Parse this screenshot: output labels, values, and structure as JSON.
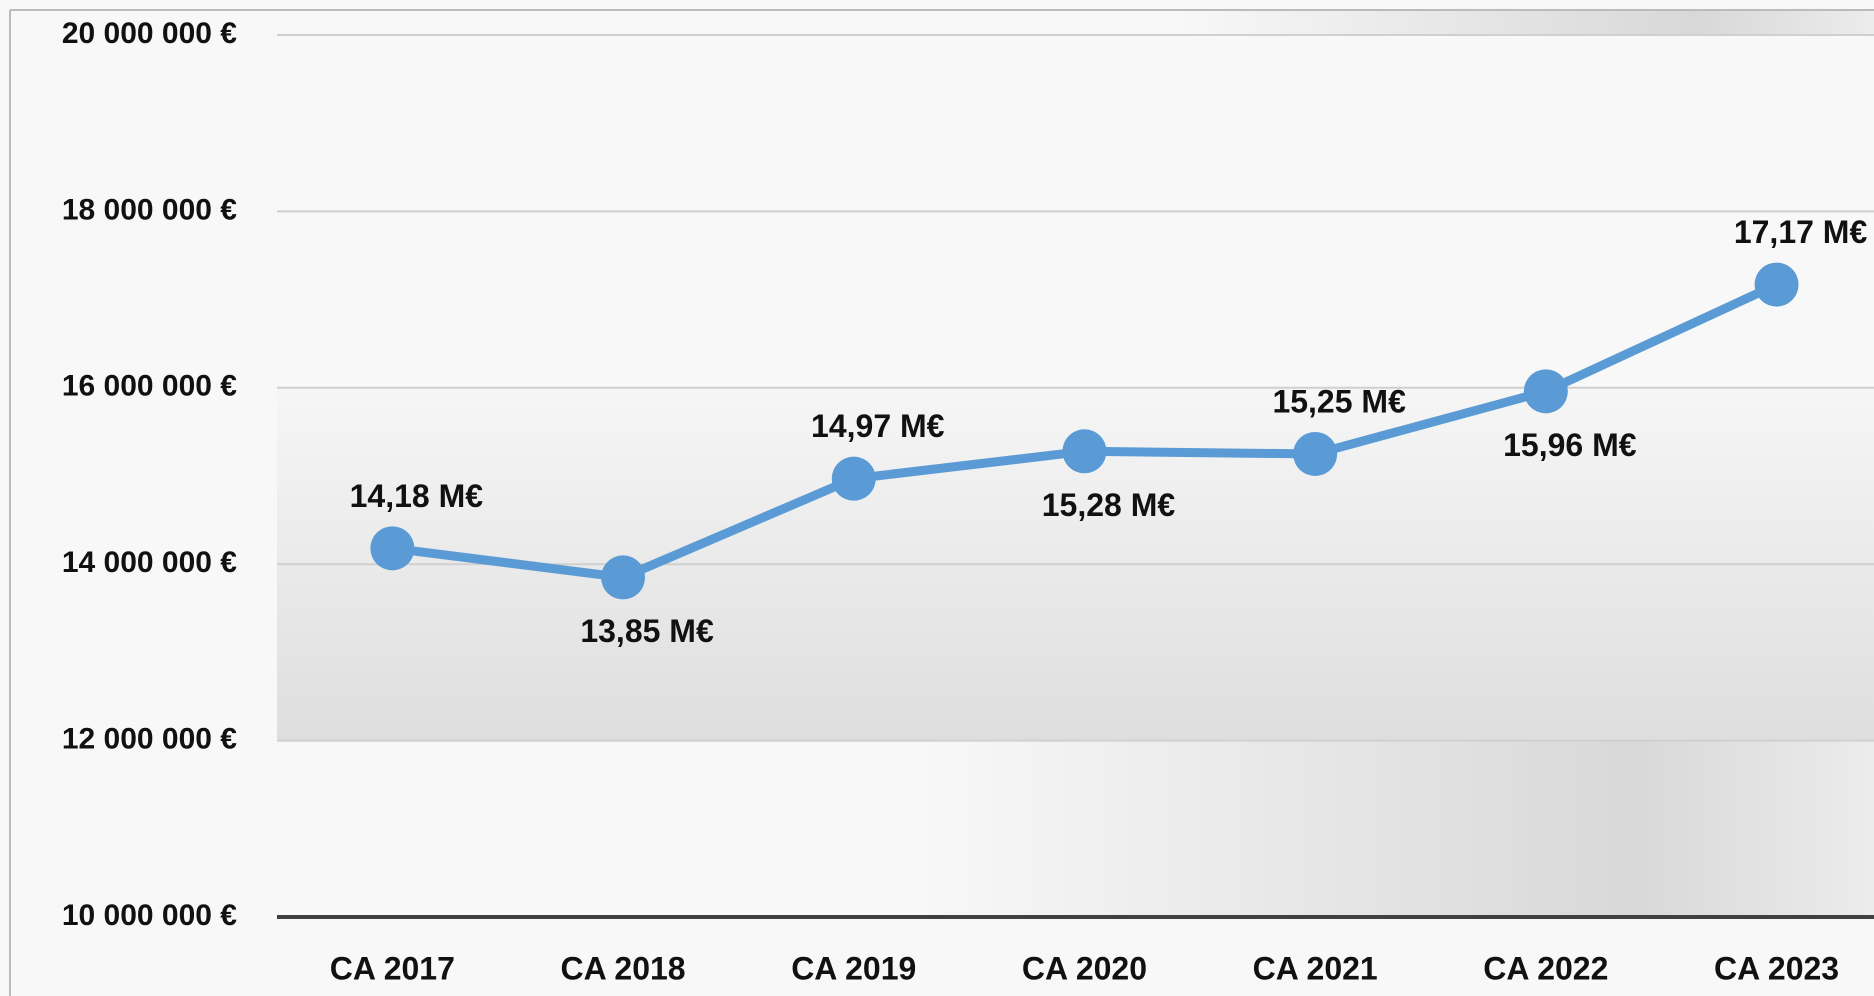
{
  "chart_data": {
    "type": "line",
    "categories": [
      "CA 2017",
      "CA 2018",
      "CA 2019",
      "CA 2020",
      "CA 2021",
      "CA 2022",
      "CA 2023"
    ],
    "series": [
      {
        "color": "#5b9bd5",
        "values": [
          14180000,
          13850000,
          14970000,
          15280000,
          15250000,
          15960000,
          17170000
        ],
        "value_labels": [
          "14,18 M€",
          "13,85 M€",
          "14,97 M€",
          "15,28 M€",
          "15,25 M€",
          "15,96 M€",
          "17,17 M€"
        ]
      }
    ],
    "ylim": [
      10000000,
      20000000
    ],
    "yticks": [
      {
        "value": 10000000,
        "label": "10 000 000 €"
      },
      {
        "value": 12000000,
        "label": "12 000 000 €"
      },
      {
        "value": 14000000,
        "label": "14 000 000 €"
      },
      {
        "value": 16000000,
        "label": "16 000 000 €"
      },
      {
        "value": 18000000,
        "label": "18 000 000 €"
      },
      {
        "value": 20000000,
        "label": "20 000 000 €"
      }
    ],
    "grid": true
  }
}
